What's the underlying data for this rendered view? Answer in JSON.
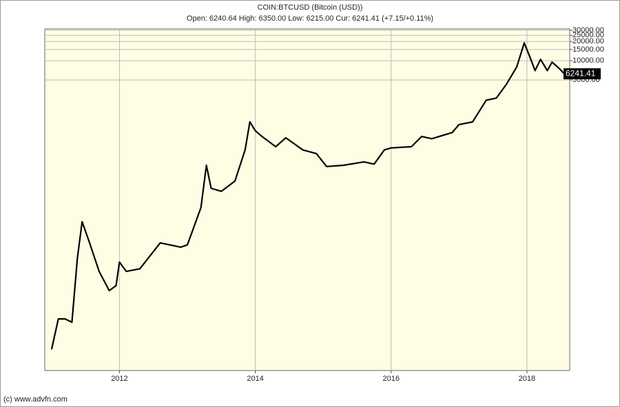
{
  "chart_data": {
    "type": "line",
    "title": "COIN:BTCUSD (Bitcoin (USD))",
    "subtitle": "Open: 6240.64 High: 6350.00 Low: 6215.00 Cur: 6241.41 (+7.15/+0.11%)",
    "footer": "(c) www.advfn.com",
    "x": [
      2011.0,
      2011.1,
      2011.2,
      2011.3,
      2011.38,
      2011.45,
      2011.55,
      2011.7,
      2011.85,
      2011.95,
      2012.0,
      2012.1,
      2012.3,
      2012.6,
      2012.9,
      2013.0,
      2013.2,
      2013.28,
      2013.35,
      2013.5,
      2013.7,
      2013.85,
      2013.92,
      2014.0,
      2014.1,
      2014.3,
      2014.45,
      2014.7,
      2014.9,
      2015.05,
      2015.3,
      2015.6,
      2015.75,
      2015.9,
      2016.0,
      2016.3,
      2016.45,
      2016.6,
      2016.9,
      2017.0,
      2017.2,
      2017.4,
      2017.55,
      2017.7,
      2017.85,
      2017.96,
      2018.05,
      2018.12,
      2018.2,
      2018.3,
      2018.37,
      2018.48,
      2018.55
    ],
    "series": [
      {
        "name": "BTCUSD",
        "color": "#000000",
        "values": [
          0.3,
          0.9,
          0.9,
          0.8,
          8,
          30,
          15,
          5,
          2.5,
          3,
          7,
          5,
          5.5,
          14,
          12,
          13,
          50,
          230,
          100,
          90,
          130,
          400,
          1100,
          800,
          650,
          450,
          620,
          400,
          350,
          220,
          230,
          260,
          240,
          400,
          430,
          450,
          650,
          600,
          750,
          1000,
          1100,
          2400,
          2600,
          4300,
          8000,
          19000,
          11000,
          7000,
          10500,
          7000,
          9500,
          7500,
          6241.41
        ]
      }
    ],
    "xlim": [
      2010.9,
      2018.63
    ],
    "xticks": [
      2012,
      2014,
      2016,
      2018
    ],
    "ylim": [
      0.14,
      31500
    ],
    "log_scale": true,
    "grid": true,
    "yticks": [
      {
        "value": 30000,
        "label": "30000.00"
      },
      {
        "value": 25000,
        "label": "25000.00"
      },
      {
        "value": 20000,
        "label": "20000.00"
      },
      {
        "value": 15000,
        "label": "15000.00"
      },
      {
        "value": 10000,
        "label": "10000.00"
      },
      {
        "value": 5000,
        "label": "5000.00"
      }
    ]
  }
}
